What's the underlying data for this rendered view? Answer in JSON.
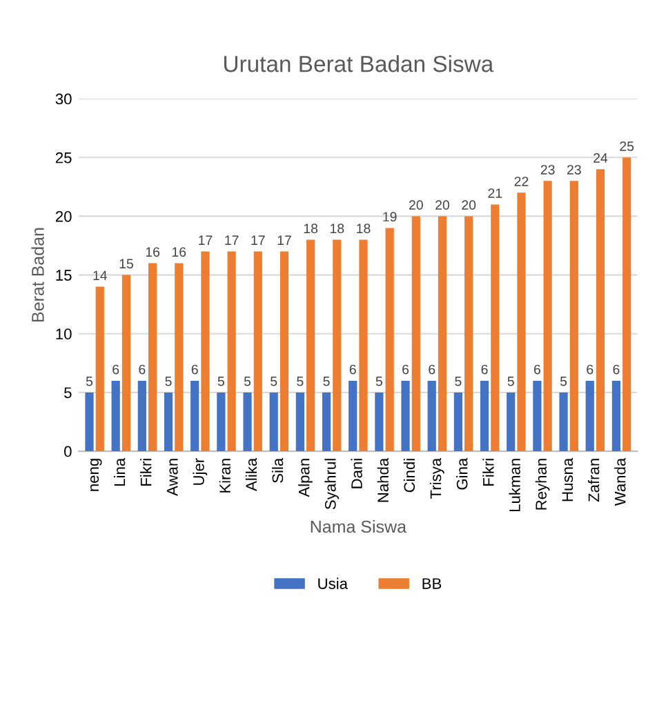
{
  "chart_data": {
    "type": "bar",
    "title": "Urutan Berat Badan Siswa",
    "xlabel": "Nama Siswa",
    "ylabel": "Berat Badan",
    "categories": [
      "neng",
      "Lina",
      "Fikri",
      "Awan",
      "Ujer",
      "Kiran",
      "Alika",
      "Sila",
      "Alpan",
      "Syahrul",
      "Dani",
      "Nahda",
      "Cindi",
      "Trisya",
      "Gina",
      "Fikri",
      "Lukman",
      "Reyhan",
      "Husna",
      "Zafran",
      "Wanda"
    ],
    "series": [
      {
        "name": "Usia",
        "color": "#4472c4",
        "values": [
          5,
          6,
          6,
          5,
          6,
          5,
          5,
          5,
          5,
          5,
          6,
          5,
          6,
          6,
          5,
          6,
          5,
          6,
          5,
          6,
          6
        ]
      },
      {
        "name": "BB",
        "color": "#ed7d31",
        "values": [
          14,
          15,
          16,
          16,
          17,
          17,
          17,
          17,
          18,
          18,
          18,
          19,
          20,
          20,
          20,
          21,
          22,
          23,
          23,
          24,
          25
        ]
      }
    ],
    "ylim": [
      0,
      30
    ],
    "yticks": [
      0,
      5,
      10,
      15,
      20,
      25,
      30
    ],
    "grid": "y",
    "legend": "bottom",
    "data_labels": true
  }
}
